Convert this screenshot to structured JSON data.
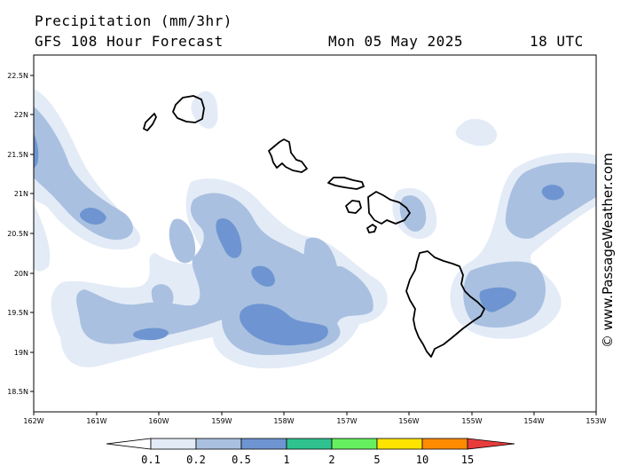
{
  "header": {
    "title": "Precipitation (mm/3hr)",
    "subtitle": "GFS 108 Hour Forecast",
    "valid_date": "Mon 05 May 2025",
    "valid_time": "18 UTC"
  },
  "credit": "© www.PassageWeather.com",
  "axes": {
    "lat_labels": [
      "22.5N",
      "22N",
      "21.5N",
      "21N",
      "20.5N",
      "20N",
      "19.5N",
      "19N",
      "18.5N"
    ],
    "lon_labels": [
      "162W",
      "161W",
      "160W",
      "159W",
      "158W",
      "157W",
      "156W",
      "155W",
      "154W",
      "153W"
    ]
  },
  "legend": {
    "labels": [
      "0.1",
      "0.2",
      "0.5",
      "1",
      "2",
      "5",
      "10",
      "15"
    ],
    "colors": [
      "#e3ebf7",
      "#a9c0e0",
      "#6e95d1",
      "#2fc28e",
      "#66f060",
      "#ffe400",
      "#ff8c00",
      "#e83c3c"
    ]
  },
  "colors": {
    "light": "#e3ebf7",
    "mid": "#a9c0e0",
    "dark": "#6e95d1"
  }
}
